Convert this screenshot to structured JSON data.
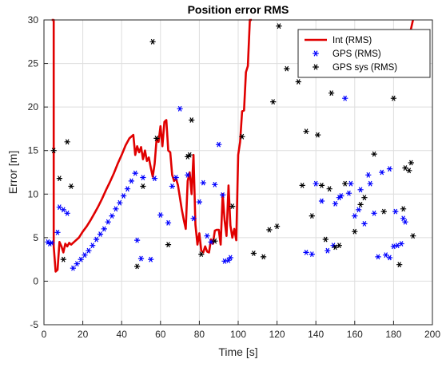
{
  "chart_data": {
    "type": "line",
    "title": "Position error RMS",
    "xlabel": "Time [s]",
    "ylabel": "Error [m]",
    "xlim": [
      0,
      200
    ],
    "ylim": [
      -5,
      30
    ],
    "xticks": [
      0,
      20,
      40,
      60,
      80,
      100,
      120,
      140,
      160,
      180,
      200
    ],
    "yticks": [
      -5,
      0,
      5,
      10,
      15,
      20,
      25,
      30
    ],
    "grid": true,
    "legend_position": "top-right",
    "series": [
      {
        "name": "Int (RMS)",
        "kind": "line",
        "color": "#e00000",
        "x": [
          4,
          5,
          5,
          6,
          7,
          8,
          9,
          10,
          11,
          12,
          13,
          14,
          16,
          18,
          20,
          22,
          24,
          26,
          28,
          30,
          32,
          34,
          36,
          38,
          40,
          42,
          44,
          46,
          47,
          48,
          49,
          50,
          51,
          52,
          53,
          54,
          55,
          56,
          57,
          58,
          59,
          60,
          61,
          62,
          63,
          64,
          65,
          66,
          67,
          68,
          69,
          70,
          71,
          72,
          73,
          74,
          75,
          76,
          77,
          78,
          79,
          80,
          81,
          82,
          83,
          84,
          85,
          86,
          87,
          88,
          89,
          90,
          91,
          92,
          93,
          94,
          95,
          96,
          97,
          98,
          99,
          100,
          101,
          102,
          103,
          104,
          105,
          106,
          107
        ],
        "values": [
          30,
          30,
          4.0,
          1.1,
          1.3,
          4.5,
          4.0,
          3.3,
          4.3,
          4.0,
          4.4,
          4.2,
          4.6,
          5.0,
          5.7,
          6.3,
          7.0,
          7.8,
          8.6,
          9.5,
          10.5,
          11.4,
          12.4,
          13.5,
          14.5,
          15.6,
          16.4,
          16.8,
          14.5,
          15.5,
          14.8,
          15.4,
          14.0,
          15.0,
          13.8,
          14.2,
          13.0,
          12.0,
          13.5,
          16.3,
          16.0,
          17.8,
          15.5,
          18.3,
          18.5,
          15.0,
          14.8,
          12.2,
          11.5,
          11.8,
          11.0,
          9.6,
          8.2,
          7.0,
          6.0,
          11.5,
          12.5,
          10.0,
          14.5,
          6.5,
          4.2,
          5.5,
          3.5,
          3.3,
          4.0,
          3.4,
          3.3,
          4.8,
          4.3,
          5.8,
          5.9,
          5.9,
          4.2,
          10.0,
          7.0,
          5.2,
          11.0,
          6.4,
          5.0,
          6.0,
          4.7,
          14.5,
          16.0,
          19.5,
          19.6,
          24.0,
          24.7,
          30,
          30
        ],
        "x2": [
          187,
          189,
          190
        ],
        "values2": [
          27.5,
          29.0,
          30
        ]
      },
      {
        "name": "GPS (RMS)",
        "kind": "scatter",
        "color": "#0000ff",
        "marker": "*",
        "x": [
          2,
          4,
          7,
          8,
          10,
          12,
          15,
          17,
          19,
          21,
          23,
          25,
          27,
          29,
          31,
          33,
          35,
          37,
          39,
          41,
          43,
          45,
          48,
          50,
          51,
          55,
          57,
          60,
          64,
          66,
          68,
          70,
          74,
          77,
          80,
          82,
          84,
          86,
          88,
          90,
          93,
          95,
          135,
          138,
          140,
          143,
          146,
          149,
          152,
          155,
          158,
          162,
          165,
          168,
          172,
          174,
          176,
          178,
          180,
          182,
          184,
          186
        ],
        "values": [
          4.5,
          4.4,
          5.6,
          8.5,
          8.2,
          7.8,
          1.5,
          2.0,
          2.5,
          3.0,
          3.5,
          4.1,
          4.8,
          5.4,
          6.0,
          6.8,
          7.5,
          8.3,
          9.0,
          9.8,
          10.6,
          11.5,
          4.7,
          2.6,
          11.9,
          2.5,
          11.8,
          7.6,
          6.7,
          10.9,
          11.9,
          19.8,
          12.2,
          7.2,
          9.1,
          11.3,
          5.2,
          4.5,
          11.1,
          15.7,
          2.3,
          2.4,
          3.3,
          3.1,
          11.2,
          9.2,
          3.5,
          4.1,
          9.6,
          21.0,
          11.2,
          8.2,
          6.6,
          11.2,
          2.8,
          12.5,
          3.0,
          12.9,
          4.0,
          4.1,
          4.3,
          6.8
        ],
        "x2": [
          3,
          47,
          92,
          96,
          133,
          150,
          153,
          157,
          160,
          163,
          167,
          170,
          178,
          181,
          185
        ],
        "values2": [
          4.3,
          12.4,
          9.9,
          2.7,
          25.0,
          8.9,
          9.8,
          10.1,
          7.5,
          10.5,
          12.2,
          7.8,
          2.7,
          8.0,
          7.2
        ]
      },
      {
        "name": "GPS sys (RMS)",
        "kind": "scatter",
        "color": "#000000",
        "marker": "*",
        "x": [
          5,
          8,
          10,
          12,
          14,
          48,
          51,
          56,
          58,
          64,
          74,
          75,
          76,
          81,
          88,
          97,
          102,
          108,
          113,
          116,
          120,
          125,
          131,
          133,
          135,
          138,
          141,
          145,
          148,
          152,
          155,
          160,
          165,
          170,
          175,
          180,
          183,
          185,
          188,
          190
        ],
        "values": [
          15.0,
          11.8,
          2.5,
          16.0,
          10.9,
          1.7,
          10.9,
          27.5,
          16.4,
          4.2,
          14.3,
          14.5,
          18.5,
          3.1,
          4.6,
          8.6,
          16.6,
          3.2,
          2.8,
          5.9,
          6.3,
          24.4,
          22.9,
          11.0,
          17.2,
          7.5,
          16.8,
          4.8,
          21.6,
          4.1,
          11.2,
          5.7,
          9.6,
          14.6,
          8.0,
          21.0,
          1.9,
          8.3,
          12.7,
          5.2
        ],
        "x2": [
          118,
          121,
          143,
          147,
          150,
          163,
          186,
          189
        ],
        "values2": [
          20.6,
          29.3,
          11.0,
          10.6,
          3.9,
          8.8,
          13.0,
          13.6
        ]
      }
    ]
  }
}
